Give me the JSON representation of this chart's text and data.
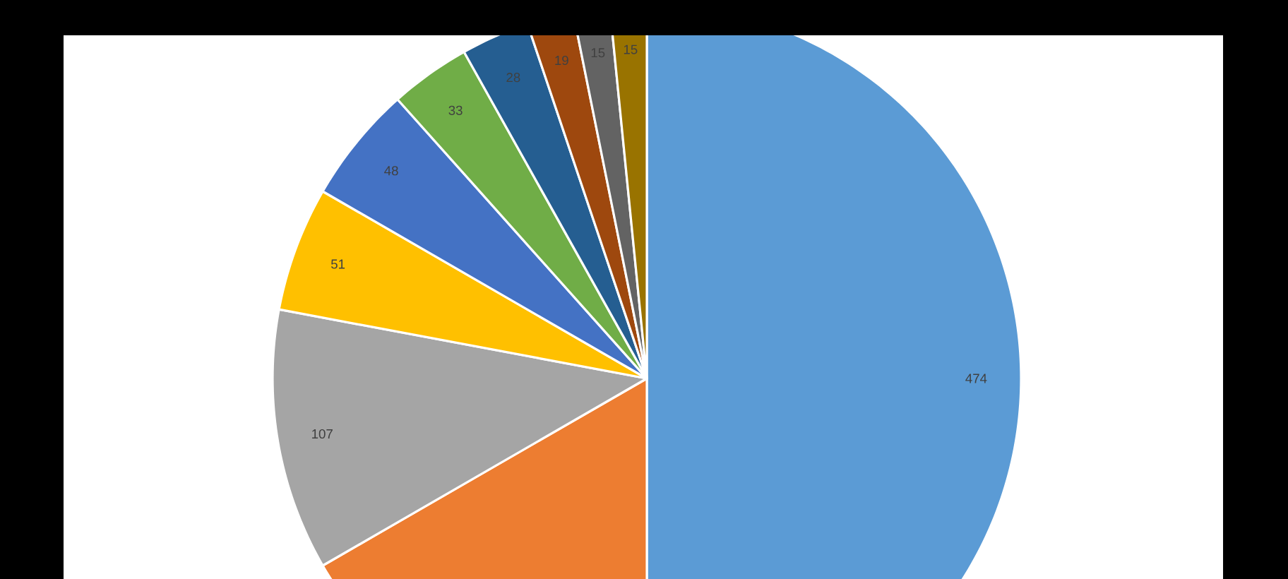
{
  "chart_data": {
    "type": "pie",
    "categories": [
      null,
      null,
      null,
      null,
      null,
      null,
      null,
      null,
      null,
      null
    ],
    "values": [
      474,
      158,
      107,
      51,
      48,
      33,
      28,
      19,
      15,
      15
    ],
    "colors": [
      "#5b9bd5",
      "#ed7d31",
      "#a5a5a5",
      "#ffc000",
      "#4472c4",
      "#70ad47",
      "#255e91",
      "#9e480e",
      "#636363",
      "#997300"
    ],
    "value_labels": [
      "474",
      null,
      "107",
      "51",
      "48",
      "33",
      "28",
      "19",
      "15",
      "15"
    ]
  }
}
